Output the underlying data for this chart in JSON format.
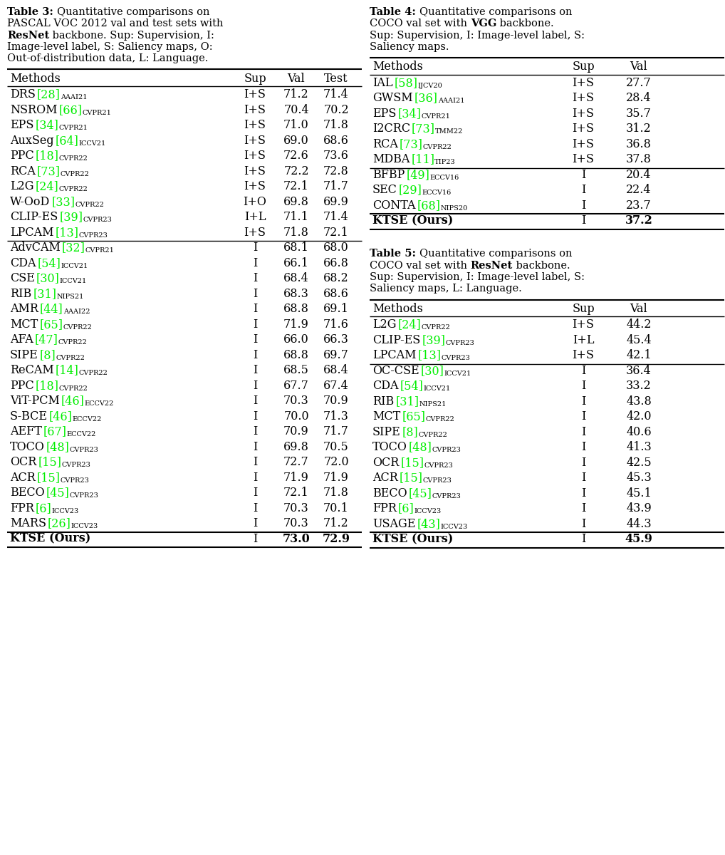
{
  "background_color": "#ffffff",
  "green_color": "#00ee00",
  "black_color": "#000000",
  "table3": {
    "group1": [
      [
        "DRS",
        "28",
        "AAAI21",
        "I+S",
        "71.2",
        "71.4"
      ],
      [
        "NSROM",
        "66",
        "CVPR21",
        "I+S",
        "70.4",
        "70.2"
      ],
      [
        "EPS",
        "34",
        "CVPR21",
        "I+S",
        "71.0",
        "71.8"
      ],
      [
        "AuxSeg",
        "64",
        "ICCV21",
        "I+S",
        "69.0",
        "68.6"
      ],
      [
        "PPC",
        "18",
        "CVPR22",
        "I+S",
        "72.6",
        "73.6"
      ],
      [
        "RCA",
        "73",
        "CVPR22",
        "I+S",
        "72.2",
        "72.8"
      ],
      [
        "L2G",
        "24",
        "CVPR22",
        "I+S",
        "72.1",
        "71.7"
      ],
      [
        "W-OoD",
        "33",
        "CVPR22",
        "I+O",
        "69.8",
        "69.9"
      ],
      [
        "CLIP-ES",
        "39",
        "CVPR23",
        "I+L",
        "71.1",
        "71.4"
      ],
      [
        "LPCAM",
        "13",
        "CVPR23",
        "I+S",
        "71.8",
        "72.1"
      ]
    ],
    "group2": [
      [
        "AdvCAM",
        "32",
        "CVPR21",
        "I",
        "68.1",
        "68.0"
      ],
      [
        "CDA",
        "54",
        "ICCV21",
        "I",
        "66.1",
        "66.8"
      ],
      [
        "CSE",
        "30",
        "ICCV21",
        "I",
        "68.4",
        "68.2"
      ],
      [
        "RIB",
        "31",
        "NIPS21",
        "I",
        "68.3",
        "68.6"
      ],
      [
        "AMR",
        "44",
        "AAAI22",
        "I",
        "68.8",
        "69.1"
      ],
      [
        "MCT",
        "65",
        "CVPR22",
        "I",
        "71.9",
        "71.6"
      ],
      [
        "AFA",
        "47",
        "CVPR22",
        "I",
        "66.0",
        "66.3"
      ],
      [
        "SIPE",
        "8",
        "CVPR22",
        "I",
        "68.8",
        "69.7"
      ],
      [
        "ReCAM",
        "14",
        "CVPR22",
        "I",
        "68.5",
        "68.4"
      ],
      [
        "PPC",
        "18",
        "CVPR22",
        "I",
        "67.7",
        "67.4"
      ],
      [
        "ViT-PCM",
        "46",
        "ECCV22",
        "I",
        "70.3",
        "70.9"
      ],
      [
        "S-BCE",
        "46",
        "ECCV22",
        "I",
        "70.0",
        "71.3"
      ],
      [
        "AEFT",
        "67",
        "ECCV22",
        "I",
        "70.9",
        "71.7"
      ],
      [
        "TOCO",
        "48",
        "CVPR23",
        "I",
        "69.8",
        "70.5"
      ],
      [
        "OCR",
        "15",
        "CVPR23",
        "I",
        "72.7",
        "72.0"
      ],
      [
        "ACR",
        "15",
        "CVPR23",
        "I",
        "71.9",
        "71.9"
      ],
      [
        "BECO",
        "45",
        "CVPR23",
        "I",
        "72.1",
        "71.8"
      ],
      [
        "FPR",
        "6",
        "ICCV23",
        "I",
        "70.3",
        "70.1"
      ],
      [
        "MARS",
        "26",
        "ICCV23",
        "I",
        "70.3",
        "71.2"
      ]
    ],
    "ours": [
      "KTSE (Ours)",
      "I",
      "73.0",
      "72.9"
    ]
  },
  "table4": {
    "group1": [
      [
        "IAL",
        "58",
        "IJCV20",
        "I+S",
        "27.7"
      ],
      [
        "GWSM",
        "36",
        "AAAI21",
        "I+S",
        "28.4"
      ],
      [
        "EPS",
        "34",
        "CVPR21",
        "I+S",
        "35.7"
      ],
      [
        "I2CRC",
        "73",
        "TMM22",
        "I+S",
        "31.2"
      ],
      [
        "RCA",
        "73",
        "CVPR22",
        "I+S",
        "36.8"
      ],
      [
        "MDBA",
        "11",
        "TIP23",
        "I+S",
        "37.8"
      ]
    ],
    "group2": [
      [
        "BFBP",
        "49",
        "ECCV16",
        "I",
        "20.4"
      ],
      [
        "SEC",
        "29",
        "ECCV16",
        "I",
        "22.4"
      ],
      [
        "CONTA",
        "68",
        "NIPS20",
        "I",
        "23.7"
      ]
    ],
    "ours": [
      "KTSE (Ours)",
      "I",
      "37.2"
    ]
  },
  "table5": {
    "group1": [
      [
        "L2G",
        "24",
        "CVPR22",
        "I+S",
        "44.2"
      ],
      [
        "CLIP-ES",
        "39",
        "CVPR23",
        "I+L",
        "45.4"
      ],
      [
        "LPCAM",
        "13",
        "CVPR23",
        "I+S",
        "42.1"
      ]
    ],
    "group2": [
      [
        "OC-CSE",
        "30",
        "ICCV21",
        "I",
        "36.4"
      ],
      [
        "CDA",
        "54",
        "ICCV21",
        "I",
        "33.2"
      ],
      [
        "RIB",
        "31",
        "NIPS21",
        "I",
        "43.8"
      ],
      [
        "MCT",
        "65",
        "CVPR22",
        "I",
        "42.0"
      ],
      [
        "SIPE",
        "8",
        "CVPR22",
        "I",
        "40.6"
      ],
      [
        "TOCO",
        "48",
        "CVPR23",
        "I",
        "41.3"
      ],
      [
        "OCR",
        "15",
        "CVPR23",
        "I",
        "42.5"
      ],
      [
        "ACR",
        "15",
        "CVPR23",
        "I",
        "45.3"
      ],
      [
        "BECO",
        "45",
        "CVPR23",
        "I",
        "45.1"
      ],
      [
        "FPR",
        "6",
        "ICCV23",
        "I",
        "43.9"
      ],
      [
        "USAGE",
        "43",
        "ICCV23",
        "I",
        "44.3"
      ]
    ],
    "ours": [
      "KTSE (Ours)",
      "I",
      "45.9"
    ]
  }
}
